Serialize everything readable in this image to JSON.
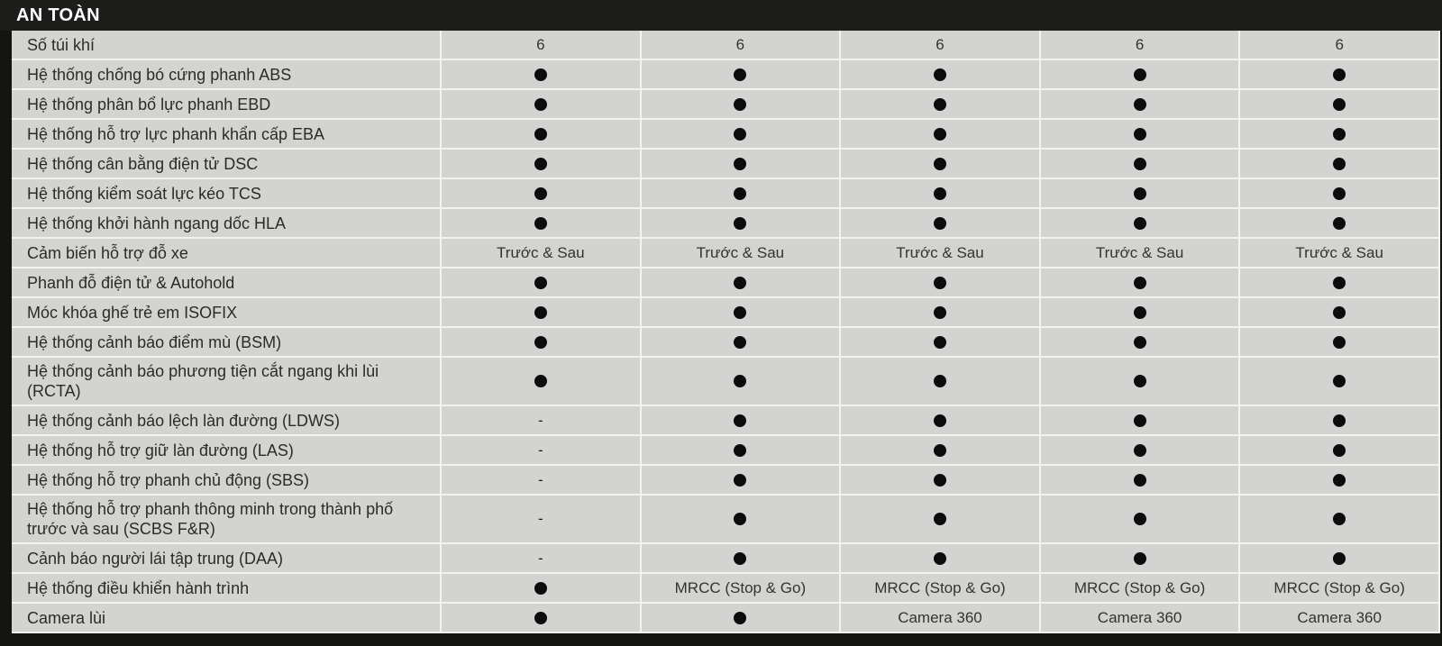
{
  "section": {
    "title": "AN TOÀN"
  },
  "legend": {
    "included_marker": "●",
    "not_available_marker": "-"
  },
  "table": {
    "column_count": 5,
    "rows": [
      {
        "label": "Số túi khí",
        "values": [
          "6",
          "6",
          "6",
          "6",
          "6"
        ]
      },
      {
        "label": "Hệ thống chống bó cứng phanh ABS",
        "values": [
          "●",
          "●",
          "●",
          "●",
          "●"
        ]
      },
      {
        "label": "Hệ thống phân bổ lực phanh EBD",
        "values": [
          "●",
          "●",
          "●",
          "●",
          "●"
        ]
      },
      {
        "label": "Hệ thống hỗ trợ lực phanh khẩn cấp EBA",
        "values": [
          "●",
          "●",
          "●",
          "●",
          "●"
        ]
      },
      {
        "label": "Hệ thống cân bằng điện tử DSC",
        "values": [
          "●",
          "●",
          "●",
          "●",
          "●"
        ]
      },
      {
        "label": "Hệ thống kiểm soát lực kéo TCS",
        "values": [
          "●",
          "●",
          "●",
          "●",
          "●"
        ]
      },
      {
        "label": "Hệ thống khởi hành ngang dốc HLA",
        "values": [
          "●",
          "●",
          "●",
          "●",
          "●"
        ]
      },
      {
        "label": "Cảm biến hỗ trợ đỗ xe",
        "values": [
          "Trước & Sau",
          "Trước & Sau",
          "Trước & Sau",
          "Trước & Sau",
          "Trước & Sau"
        ]
      },
      {
        "label": "Phanh đỗ điện tử & Autohold",
        "values": [
          "●",
          "●",
          "●",
          "●",
          "●"
        ]
      },
      {
        "label": "Móc khóa ghế trẻ em ISOFIX",
        "values": [
          "●",
          "●",
          "●",
          "●",
          "●"
        ]
      },
      {
        "label": "Hệ thống cảnh báo điểm mù (BSM)",
        "values": [
          "●",
          "●",
          "●",
          "●",
          "●"
        ]
      },
      {
        "label": "Hệ thống cảnh báo phương tiện cắt ngang khi lùi\n(RCTA)",
        "values": [
          "●",
          "●",
          "●",
          "●",
          "●"
        ]
      },
      {
        "label": "Hệ thống cảnh báo lệch làn đường (LDWS)",
        "values": [
          "-",
          "●",
          "●",
          "●",
          "●"
        ]
      },
      {
        "label": "Hệ thống hỗ trợ giữ làn đường (LAS)",
        "values": [
          "-",
          "●",
          "●",
          "●",
          "●"
        ]
      },
      {
        "label": "Hệ thống hỗ trợ phanh chủ động (SBS)",
        "values": [
          "-",
          "●",
          "●",
          "●",
          "●"
        ]
      },
      {
        "label": "Hệ thống hỗ trợ phanh thông minh trong thành phố\ntrước và sau (SCBS F&R)",
        "values": [
          "-",
          "●",
          "●",
          "●",
          "●"
        ]
      },
      {
        "label": "Cảnh báo người lái tập trung (DAA)",
        "values": [
          "-",
          "●",
          "●",
          "●",
          "●"
        ]
      },
      {
        "label": "Hệ thống điều khiển hành trình",
        "values": [
          "●",
          "MRCC (Stop & Go)",
          "MRCC (Stop & Go)",
          "MRCC (Stop & Go)",
          "MRCC (Stop & Go)"
        ]
      },
      {
        "label": "Camera lùi",
        "values": [
          "●",
          "●",
          "Camera 360",
          "Camera 360",
          "Camera 360"
        ]
      }
    ]
  },
  "colors": {
    "frame": "#141412",
    "header_bg": "#1d1d1b",
    "header_text": "#ffffff",
    "row_bg": "#d3d4d2",
    "separator": "#f2f2f1",
    "label_text": "#2b2b29",
    "value_text": "#333331",
    "dot": "#0c0c0c"
  }
}
